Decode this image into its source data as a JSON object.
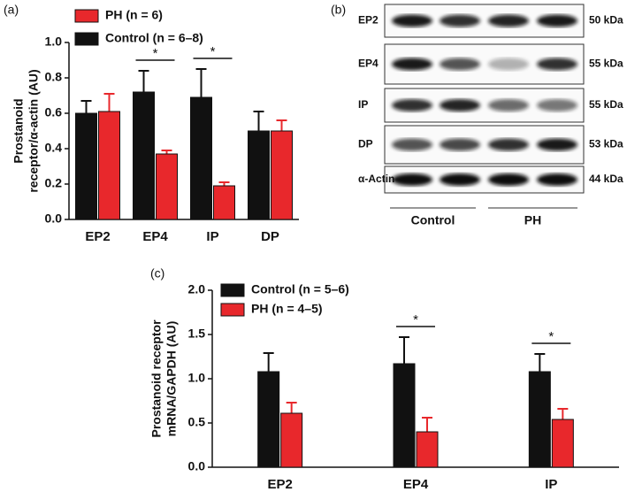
{
  "chart_data": [
    {
      "type": "bar",
      "panel": "(a)",
      "ylabel": [
        "Prostanoid",
        "receptor/α-actin (AU)"
      ],
      "categories": [
        "EP2",
        "EP4",
        "IP",
        "DP"
      ],
      "series": [
        {
          "name": "Control (n = 6–8)",
          "color": "#111111",
          "values": [
            0.6,
            0.72,
            0.69,
            0.5
          ],
          "errors": [
            0.07,
            0.12,
            0.16,
            0.11
          ]
        },
        {
          "name": "PH (n = 6)",
          "color": "#e8282c",
          "values": [
            0.61,
            0.37,
            0.19,
            0.5
          ],
          "errors": [
            0.1,
            0.02,
            0.02,
            0.06
          ]
        }
      ],
      "ylim": [
        0,
        1.0
      ],
      "yticks": [
        {
          "value": 0,
          "label": "0.0"
        },
        0.2,
        0.4,
        0.6,
        0.8,
        {
          "value": 1,
          "label": "1.0"
        }
      ],
      "legend_reversed": true,
      "significance": [
        {
          "label": "*",
          "category": "EP4"
        },
        {
          "label": "*",
          "category": "IP"
        }
      ]
    },
    {
      "type": "bar",
      "panel": "(c)",
      "ylabel": [
        "Prostanoid receptor",
        "mRNA/GAPDH (AU)"
      ],
      "categories": [
        "EP2",
        "EP4",
        "IP"
      ],
      "series": [
        {
          "name": "Control (n = 5–6)",
          "color": "#111111",
          "values": [
            1.08,
            1.17,
            1.08
          ],
          "errors": [
            0.21,
            0.3,
            0.2
          ]
        },
        {
          "name": "PH (n = 4–5)",
          "color": "#e8282c",
          "values": [
            0.61,
            0.4,
            0.54
          ],
          "errors": [
            0.12,
            0.16,
            0.12
          ]
        }
      ],
      "ylim": [
        0,
        2.0
      ],
      "yticks": [
        {
          "value": 0,
          "label": "0.0"
        },
        0.5,
        {
          "value": 1,
          "label": "1.0"
        },
        1.5,
        {
          "value": 2,
          "label": "2.0"
        }
      ],
      "legend_reversed": false,
      "significance": [
        {
          "label": "*",
          "category": "EP4"
        },
        {
          "label": "*",
          "category": "IP"
        }
      ]
    }
  ],
  "blot": {
    "panel": "(b)",
    "rows": [
      {
        "label": "EP2",
        "size": "50 kDa"
      },
      {
        "label": "EP4",
        "size": "55 kDa"
      },
      {
        "label": "IP",
        "size": "55 kDa"
      },
      {
        "label": "DP",
        "size": "53 kDa"
      },
      {
        "label": "α-Actin",
        "size": "44 kDa"
      }
    ],
    "groups": [
      "Control",
      "PH"
    ]
  }
}
